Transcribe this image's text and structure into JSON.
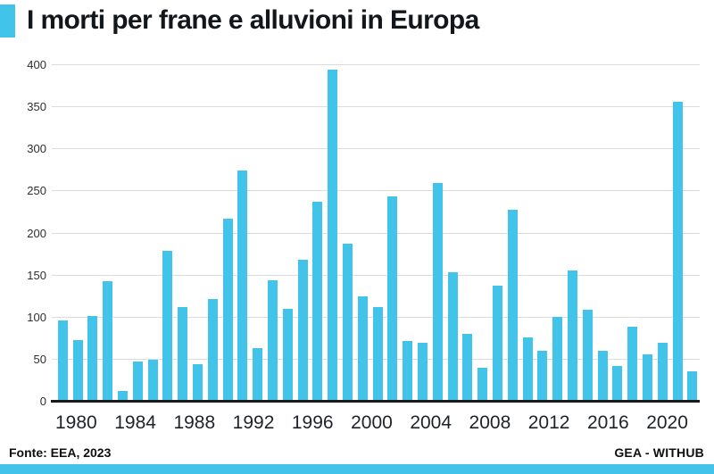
{
  "title": "I morti per frane e alluvioni in Europa",
  "colors": {
    "accent": "#42C3EA",
    "grid": "#DCDCDC",
    "axis": "#1A1A1A",
    "title_text": "#12171C",
    "tick_text": "#2E2E2E"
  },
  "chart_data": {
    "type": "bar",
    "title": "I morti per frane e alluvioni in Europa",
    "x": [
      1980,
      1981,
      1982,
      1983,
      1984,
      1985,
      1986,
      1987,
      1988,
      1989,
      1990,
      1991,
      1992,
      1993,
      1994,
      1995,
      1996,
      1997,
      1998,
      1999,
      2000,
      2001,
      2002,
      2003,
      2004,
      2005,
      2006,
      2007,
      2008,
      2009,
      2010,
      2011,
      2012,
      2013,
      2014,
      2015,
      2016,
      2017,
      2018,
      2019,
      2020,
      2021,
      2022
    ],
    "values": [
      97,
      73,
      102,
      143,
      13,
      48,
      50,
      179,
      113,
      45,
      122,
      218,
      275,
      64,
      144,
      110,
      169,
      238,
      395,
      188,
      125,
      113,
      244,
      72,
      70,
      260,
      154,
      81,
      40,
      138,
      228,
      76,
      60,
      101,
      156,
      109,
      60,
      42,
      89,
      56,
      70,
      357,
      36
    ],
    "ylim": [
      0,
      400
    ],
    "yticks": [
      0,
      50,
      100,
      150,
      200,
      250,
      300,
      350,
      400
    ],
    "xticks": [
      1980,
      1984,
      1988,
      1992,
      1996,
      2000,
      2004,
      2008,
      2012,
      2016,
      2020
    ],
    "grid": "horizontal",
    "legend": "none",
    "bar_color": "#42C3EA"
  },
  "footer": {
    "source": "Fonte: EEA, 2023",
    "brand": "GEA - WITHUB"
  }
}
